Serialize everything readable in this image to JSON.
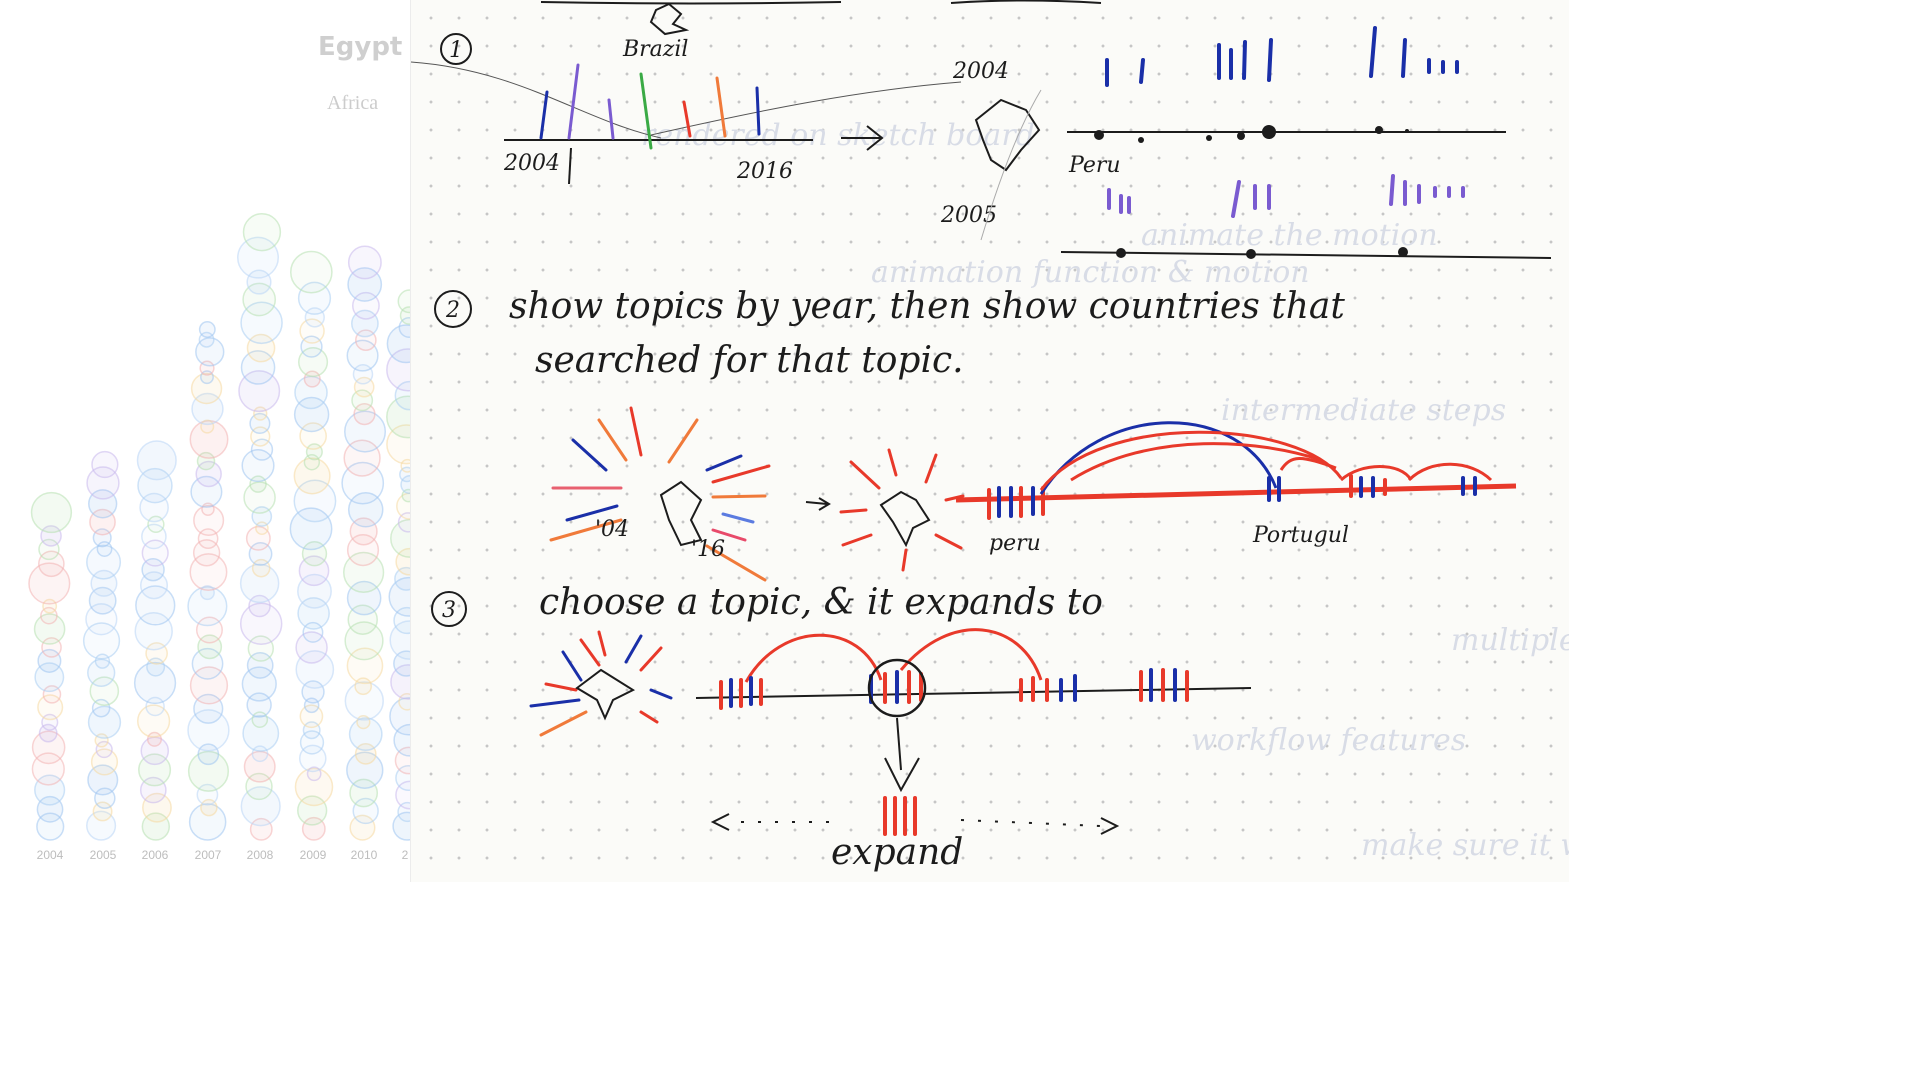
{
  "chart_panel": {
    "country": "Egypt",
    "region": "Africa",
    "years": [
      "2004",
      "2005",
      "2006",
      "2007",
      "2008",
      "2009",
      "2010",
      "2"
    ]
  },
  "sketch": {
    "step1": {
      "number": "1",
      "country_label": "Brazil",
      "axis_start": "2004",
      "axis_end": "2016",
      "year_top": "2004",
      "year_bottom": "2005",
      "country2": "Peru"
    },
    "step2": {
      "number": "2",
      "line1": "show topics by year, then show countries that",
      "line2": "searched for that topic.",
      "left_start": "'04",
      "left_end": "'16",
      "country_a": "peru",
      "country_b": "Portugul"
    },
    "step3": {
      "number": "3",
      "line1": "choose a topic, & it expands to",
      "expand_label": "expand"
    },
    "ghost_text": [
      "rendered on sketch board",
      "animate the motion",
      "animation function & motion",
      "intermediate steps",
      "workflow features",
      "multiple",
      "make sure it works"
    ],
    "colors": {
      "blue": "#1a2fa8",
      "purple": "#7a5bd0",
      "red": "#e8392a",
      "orange": "#f07a3a",
      "green": "#3aaa45",
      "ink": "#1c1c1c"
    }
  }
}
